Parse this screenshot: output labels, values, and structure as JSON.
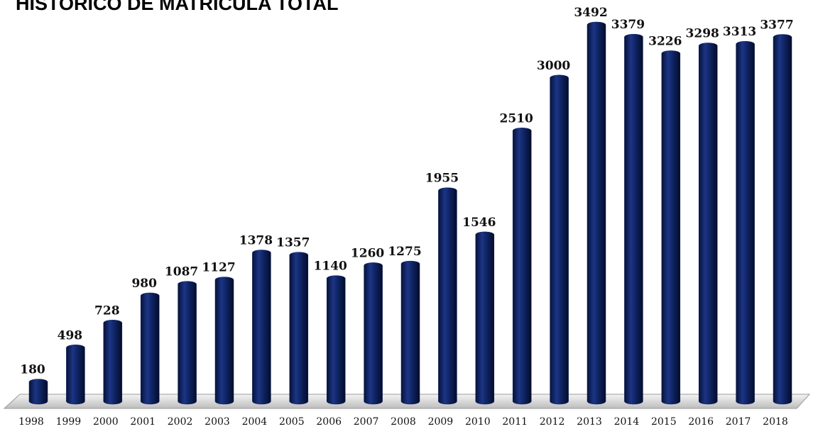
{
  "chart_data": {
    "type": "bar",
    "title": "HISTORICO DE MATRICULA TOTAL",
    "categories": [
      "1998",
      "1999",
      "2000",
      "2001",
      "2002",
      "2003",
      "2004",
      "2005",
      "2006",
      "2007",
      "2008",
      "2009",
      "2010",
      "2011",
      "2012",
      "2013",
      "2014",
      "2015",
      "2016",
      "2017",
      "2018"
    ],
    "values": [
      180,
      498,
      728,
      980,
      1087,
      1127,
      1378,
      1357,
      1140,
      1260,
      1275,
      1955,
      1546,
      2510,
      3000,
      3492,
      3379,
      3226,
      3298,
      3313,
      3377
    ],
    "color": "#0d1f5c"
  }
}
